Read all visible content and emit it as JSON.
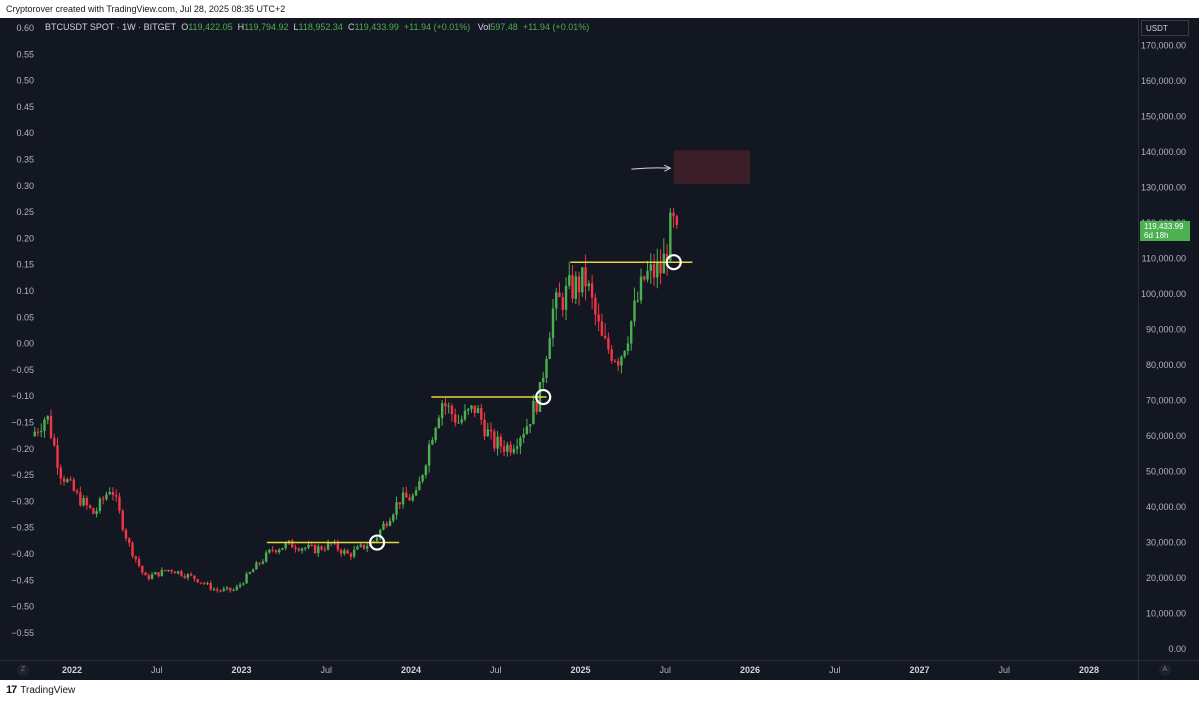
{
  "header": {
    "text": "Cryptorover created with TradingView.com, Jul 28, 2025 08:35 UTC+2"
  },
  "footer": {
    "brand": "TradingView"
  },
  "legend": {
    "symbol": "BTCUSDT SPOT · 1W · BITGET",
    "o_label": "O",
    "o": "119,422.05",
    "h_label": "H",
    "h": "119,794.92",
    "l_label": "L",
    "l": "118,952.34",
    "c_label": "C",
    "c": "119,433.99",
    "change": "+11.94 (+0.01%)",
    "vol_label": "Vol",
    "vol": "597.48",
    "vol_change": "+11.94 (+0.01%)"
  },
  "price_axis": {
    "currency": "USDT",
    "last_price": "119,433.99",
    "countdown": "6d 18h"
  },
  "corner_buttons": {
    "left": "Z",
    "right": "A"
  },
  "colors": {
    "up": "#4caf50",
    "down": "#f23645",
    "level": "#e7d33a",
    "zone": "#3b1e28",
    "background": "#131722"
  },
  "chart_data": {
    "type": "candlestick",
    "left_axis": {
      "ticks": [
        "0.60",
        "0.55",
        "0.50",
        "0.45",
        "0.40",
        "0.35",
        "0.30",
        "0.25",
        "0.20",
        "0.15",
        "0.10",
        "0.05",
        "0.00",
        "−0.05",
        "−0.10",
        "−0.15",
        "−0.20",
        "−0.25",
        "−0.30",
        "−0.35",
        "−0.40",
        "−0.45",
        "−0.50",
        "−0.55"
      ]
    },
    "right_axis": {
      "ticks": [
        "170,000.00",
        "160,000.00",
        "150,000.00",
        "140,000.00",
        "130,000.00",
        "120,000.00",
        "110,000.00",
        "100,000.00",
        "90,000.00",
        "80,000.00",
        "70,000.00",
        "60,000.00",
        "50,000.00",
        "40,000.00",
        "30,000.00",
        "20,000.00",
        "10,000.00",
        "0.00"
      ],
      "range": [
        0,
        175000
      ]
    },
    "time_axis": {
      "labels": [
        {
          "t": 2022.0,
          "text": "2022",
          "year": true
        },
        {
          "t": 2022.5,
          "text": "Jul",
          "year": false
        },
        {
          "t": 2023.0,
          "text": "2023",
          "year": true
        },
        {
          "t": 2023.5,
          "text": "Jul",
          "year": false
        },
        {
          "t": 2024.0,
          "text": "2024",
          "year": true
        },
        {
          "t": 2024.5,
          "text": "Jul",
          "year": false
        },
        {
          "t": 2025.0,
          "text": "2025",
          "year": true
        },
        {
          "t": 2025.5,
          "text": "Jul",
          "year": false
        },
        {
          "t": 2026.0,
          "text": "2026",
          "year": true
        },
        {
          "t": 2026.5,
          "text": "Jul",
          "year": false
        },
        {
          "t": 2027.0,
          "text": "2027",
          "year": true
        },
        {
          "t": 2027.5,
          "text": "Jul",
          "year": false
        },
        {
          "t": 2028.0,
          "text": "2028",
          "year": true
        }
      ]
    },
    "price_path": [
      [
        2021.78,
        60000
      ],
      [
        2021.87,
        66000
      ],
      [
        2021.95,
        50000
      ],
      [
        2022.05,
        43000
      ],
      [
        2022.15,
        38000
      ],
      [
        2022.25,
        46000
      ],
      [
        2022.35,
        30000
      ],
      [
        2022.45,
        20000
      ],
      [
        2022.6,
        22500
      ],
      [
        2022.75,
        19800
      ],
      [
        2022.87,
        16500
      ],
      [
        2022.98,
        16600
      ],
      [
        2023.1,
        23000
      ],
      [
        2023.2,
        28000
      ],
      [
        2023.3,
        29500
      ],
      [
        2023.45,
        28000
      ],
      [
        2023.55,
        29500
      ],
      [
        2023.65,
        26500
      ],
      [
        2023.8,
        30500
      ],
      [
        2023.95,
        42000
      ],
      [
        2024.05,
        43000
      ],
      [
        2024.15,
        62000
      ],
      [
        2024.2,
        70000
      ],
      [
        2024.3,
        64000
      ],
      [
        2024.4,
        68000
      ],
      [
        2024.5,
        58000
      ],
      [
        2024.6,
        57000
      ],
      [
        2024.7,
        63000
      ],
      [
        2024.78,
        72000
      ],
      [
        2024.85,
        95000
      ],
      [
        2024.95,
        101000
      ],
      [
        2025.05,
        104000
      ],
      [
        2025.15,
        86000
      ],
      [
        2025.25,
        82000
      ],
      [
        2025.33,
        94000
      ],
      [
        2025.4,
        105000
      ],
      [
        2025.5,
        107000
      ],
      [
        2025.55,
        118000
      ],
      [
        2025.58,
        119434
      ]
    ],
    "levels": [
      {
        "price": 30000,
        "t_start": 2023.15,
        "t_end": 2023.93
      },
      {
        "price": 71000,
        "t_start": 2024.12,
        "t_end": 2024.8
      },
      {
        "price": 109000,
        "t_start": 2024.94,
        "t_end": 2025.66
      }
    ],
    "markers": [
      {
        "t": 2023.8,
        "price": 30000
      },
      {
        "t": 2024.78,
        "price": 71000
      },
      {
        "t": 2025.55,
        "price": 109000
      }
    ],
    "target_zone": {
      "t_start": 2025.55,
      "t_end": 2026.0,
      "price_low": 131000,
      "price_high": 140500
    },
    "arrow": {
      "t_start": 2025.3,
      "t_end": 2025.53,
      "price": 135500
    }
  }
}
